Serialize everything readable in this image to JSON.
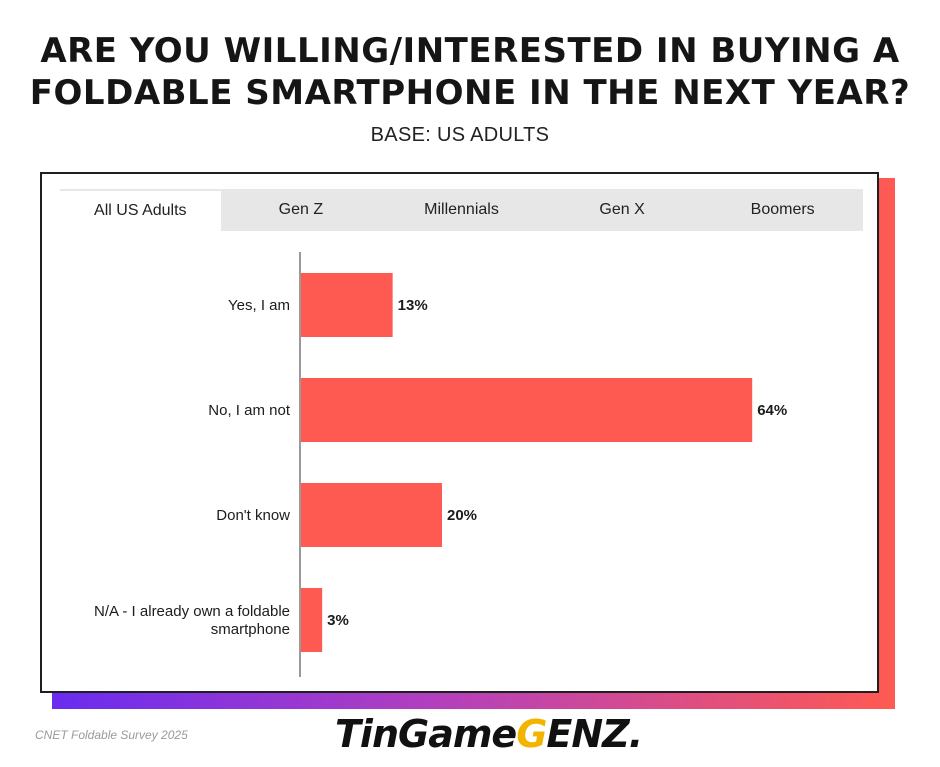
{
  "title_lines": [
    "ARE YOU WILLING/INTERESTED IN BUYING A",
    "FOLDABLE SMARTPHONE IN THE NEXT YEAR?"
  ],
  "subtitle": "BASE: US ADULTS",
  "tabs": [
    {
      "label": "All US Adults",
      "active": true
    },
    {
      "label": "Gen Z",
      "active": false
    },
    {
      "label": "Millennials",
      "active": false
    },
    {
      "label": "Gen X",
      "active": false
    },
    {
      "label": "Boomers",
      "active": false
    }
  ],
  "chart_data": {
    "type": "bar",
    "orientation": "horizontal",
    "categories": [
      [
        "Yes, I am"
      ],
      [
        "No, I am not"
      ],
      [
        "Don't know"
      ],
      [
        "N/A - I already own a foldable",
        "smartphone"
      ]
    ],
    "values": [
      13,
      64,
      20,
      3
    ],
    "value_labels": [
      "13%",
      "64%",
      "20%",
      "3%"
    ],
    "unit": "%",
    "bar_color": "#ff5a52",
    "grid": false
  },
  "source": "CNET  Foldable Survey 2025",
  "watermark": {
    "part1": "TinGame",
    "part2": "G",
    "part3": "ENZ."
  },
  "colors": {
    "accent": "#ff5a52",
    "gradient_start": "#6a2cf0",
    "frame": "#1f1f1f"
  }
}
